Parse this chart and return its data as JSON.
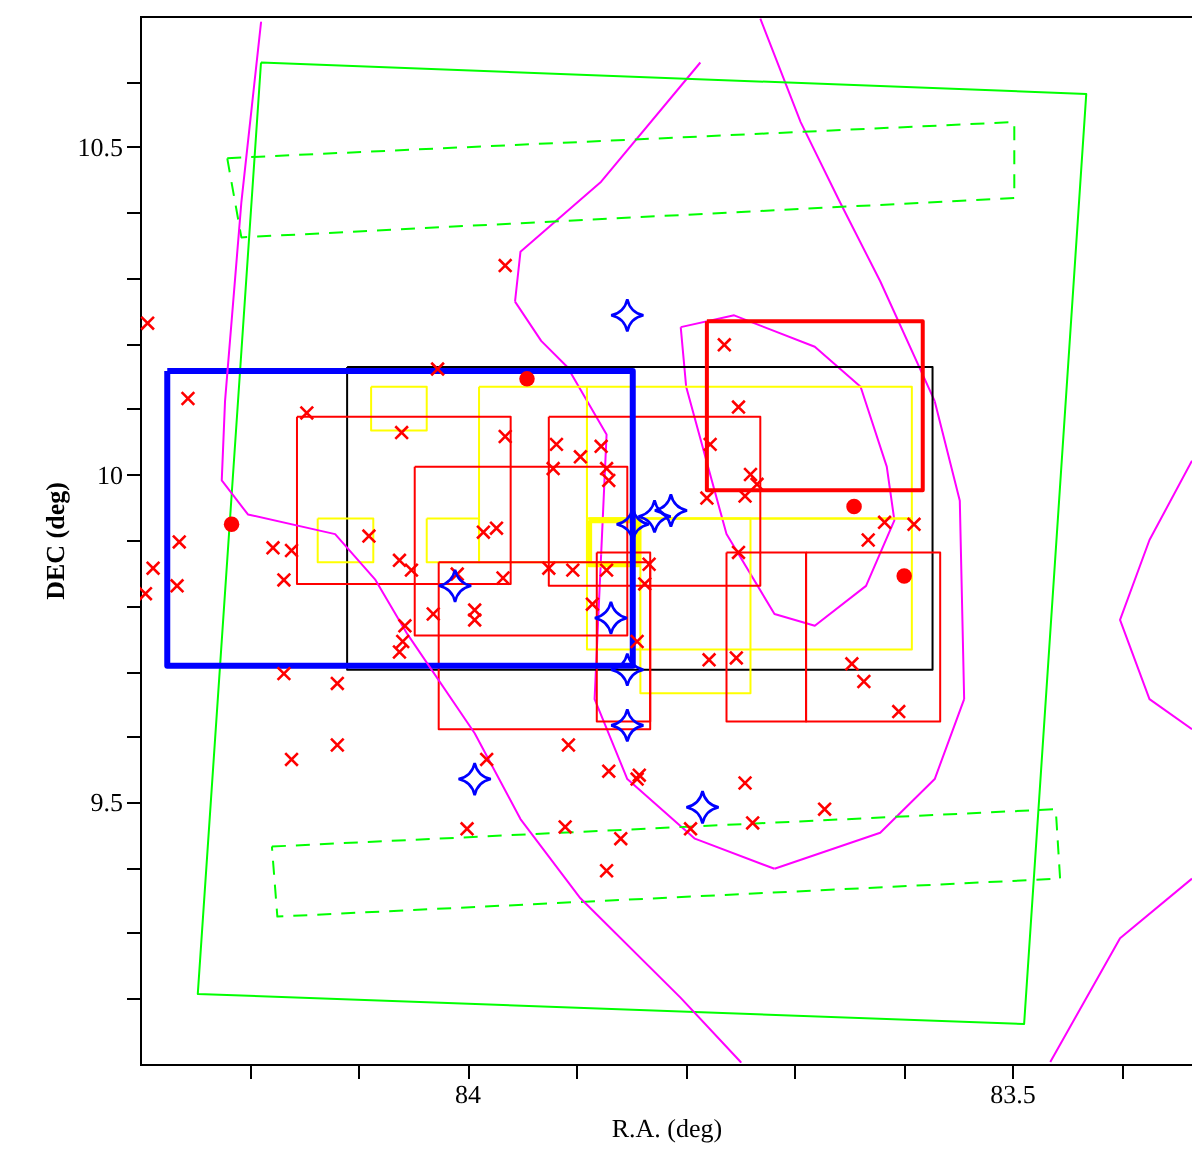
{
  "chart_data": {
    "type": "scatter",
    "xlabel": "R.A. (deg)",
    "ylabel": "DEC (deg)",
    "xlim": [
      84.3,
      83.335
    ],
    "ylim": [
      9.1,
      10.7
    ],
    "xticks": [
      {
        "value": 84.2,
        "label": null
      },
      {
        "value": 84.1,
        "label": null
      },
      84,
      {
        "value": 83.9,
        "label": null
      },
      {
        "value": 83.8,
        "label": null
      },
      {
        "value": 83.7,
        "label": null
      },
      {
        "value": 83.6,
        "label": null
      },
      83.5,
      {
        "value": 83.4,
        "label": null
      }
    ],
    "yticks": [
      {
        "value": 9.2,
        "label": null
      },
      {
        "value": 9.3,
        "label": null
      },
      {
        "value": 9.4,
        "label": null
      },
      9.5,
      {
        "value": 9.6,
        "label": null
      },
      {
        "value": 9.7,
        "label": null
      },
      {
        "value": 9.8,
        "label": null
      },
      {
        "value": 9.9,
        "label": null
      },
      10,
      {
        "value": 10.1,
        "label": null
      },
      {
        "value": 10.2,
        "label": null
      },
      {
        "value": 10.3,
        "label": null
      },
      {
        "value": 10.4,
        "label": null
      },
      10.5,
      {
        "value": 10.6,
        "label": null
      }
    ],
    "grid": false,
    "legend": false,
    "series": [
      {
        "type": "line",
        "color": "#ff00ff",
        "x": [
          84.189,
          84.207,
          84.222,
          84.225,
          84.201,
          84.121,
          84.084,
          84.055,
          83.993,
          83.951,
          83.896,
          83.804,
          83.749
        ],
        "values": [
          10.69,
          10.416,
          10.112,
          9.991,
          9.939,
          9.909,
          9.839,
          9.757,
          9.605,
          9.474,
          9.353,
          9.201,
          9.103
        ]
      },
      {
        "type": "scatter",
        "color": "#ff0000",
        "marker": "cross",
        "x": [
          84.293,
          84.256,
          84.264,
          84.288,
          84.295,
          84.266,
          84.178,
          84.161,
          84.168,
          84.147,
          84.06,
          84.09,
          84.062,
          84.051,
          84.027,
          83.965,
          83.985,
          83.973,
          84.031,
          83.993,
          83.993,
          84.057,
          84.059,
          84.062,
          84.168,
          84.119,
          84.161,
          84.119,
          84.009,
          83.967,
          83.925,
          83.903,
          83.921,
          83.918,
          83.896,
          83.877,
          83.872,
          83.965,
          83.87,
          83.872,
          83.885,
          83.844,
          83.907,
          83.87,
          83.982,
          84.0,
          83.91,
          83.872,
          83.844,
          83.764,
          83.751,
          83.777,
          83.74,
          83.734,
          83.78,
          83.745,
          83.751,
          83.833,
          83.837,
          83.778,
          83.753,
          83.632,
          83.617,
          83.647,
          83.636,
          83.604,
          83.842,
          83.745,
          83.859,
          83.795,
          83.738,
          83.672,
          83.59
        ],
        "values": [
          10.231,
          10.116,
          9.897,
          9.857,
          9.818,
          9.83,
          9.888,
          9.884,
          9.839,
          10.094,
          10.064,
          9.906,
          9.869,
          9.854,
          10.161,
          10.058,
          9.912,
          9.918,
          9.787,
          9.793,
          9.778,
          9.769,
          9.745,
          9.729,
          9.696,
          9.681,
          9.565,
          9.587,
          9.848,
          9.842,
          9.857,
          9.854,
          10.009,
          10.046,
          10.027,
          10.043,
          10.009,
          10.319,
          9.991,
          9.854,
          9.802,
          9.745,
          9.587,
          9.547,
          9.565,
          9.459,
          9.462,
          9.395,
          9.535,
          10.198,
          10.103,
          10.046,
          10.0,
          9.985,
          9.964,
          9.967,
          9.881,
          9.863,
          9.833,
          9.717,
          9.72,
          9.9,
          9.927,
          9.711,
          9.684,
          9.638,
          9.541,
          9.529,
          9.444,
          9.459,
          9.468,
          9.489,
          9.924
        ]
      },
      {
        "type": "scatter",
        "color": "#ff0000",
        "marker": "circle",
        "x": [
          84.216,
          83.945,
          83.645,
          83.599
        ],
        "values": [
          9.924,
          10.146,
          9.951,
          9.845
        ]
      },
      {
        "type": "scatter",
        "color": "#0000ff",
        "marker": "star",
        "x": [
          83.853,
          84.011,
          83.868,
          83.853,
          83.853,
          83.993,
          83.784,
          83.848,
          83.828,
          83.813
        ],
        "values": [
          10.243,
          9.83,
          9.781,
          9.702,
          9.617,
          9.535,
          9.492,
          9.924,
          9.936,
          9.945
        ]
      }
    ]
  }
}
